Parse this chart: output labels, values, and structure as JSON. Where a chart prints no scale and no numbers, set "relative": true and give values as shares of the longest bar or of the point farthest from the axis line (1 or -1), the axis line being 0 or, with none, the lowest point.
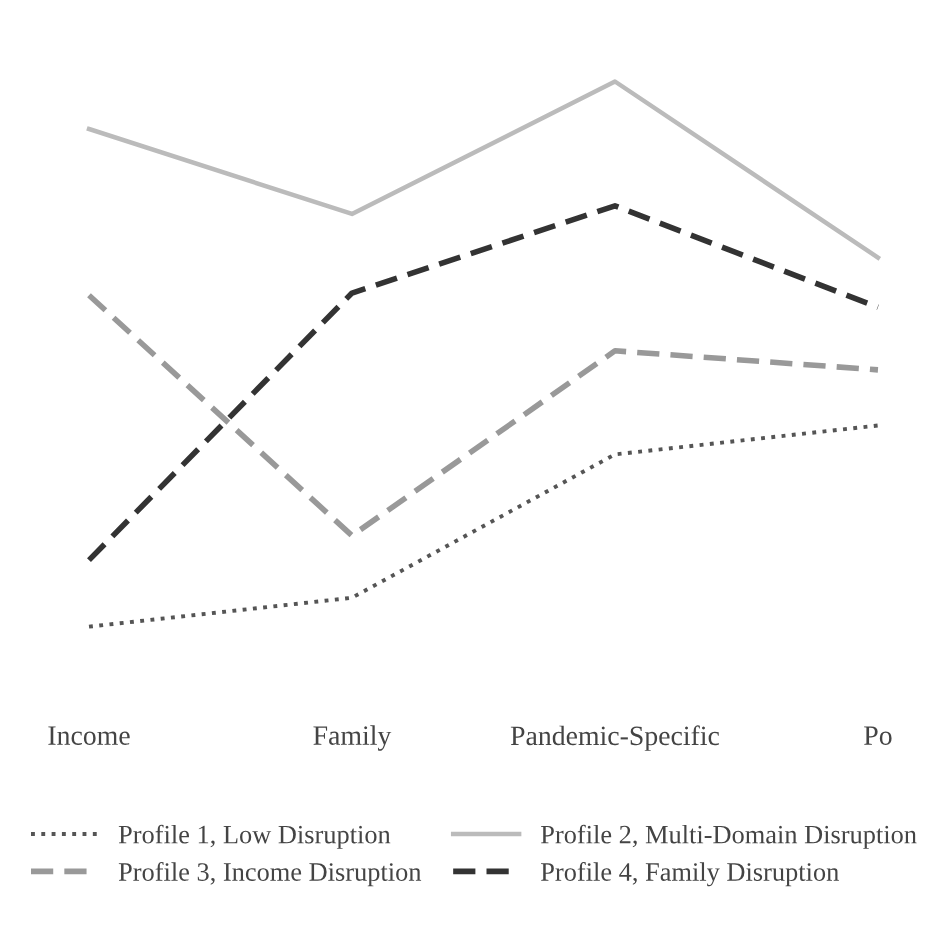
{
  "chart_data": {
    "type": "line",
    "relative": true,
    "legend": "bottom",
    "grid": false,
    "categories": [
      "Income",
      "Family",
      "Pandemic-Specific",
      "Po"
    ],
    "series": [
      {
        "name": "Profile 1, Low Disruption",
        "color": "#555555",
        "line_style": "dotted",
        "values": [
          0,
          0.053,
          0.316,
          0.369
        ]
      },
      {
        "name": "Profile 2, Multi-Domain Disruption",
        "color": "#bbbbbb",
        "line_style": "solid",
        "values": [
          0.913,
          0.757,
          1,
          0.677
        ]
      },
      {
        "name": "Profile 3, Income Disruption",
        "color": "#999999",
        "line_style": "dashed",
        "values": [
          0.608,
          0.167,
          0.506,
          0.471
        ]
      },
      {
        "name": "Profile 4, Family Disruption",
        "color": "#333333",
        "line_style": "dashed",
        "values": [
          0.122,
          0.612,
          0.772,
          0.586
        ]
      }
    ]
  }
}
